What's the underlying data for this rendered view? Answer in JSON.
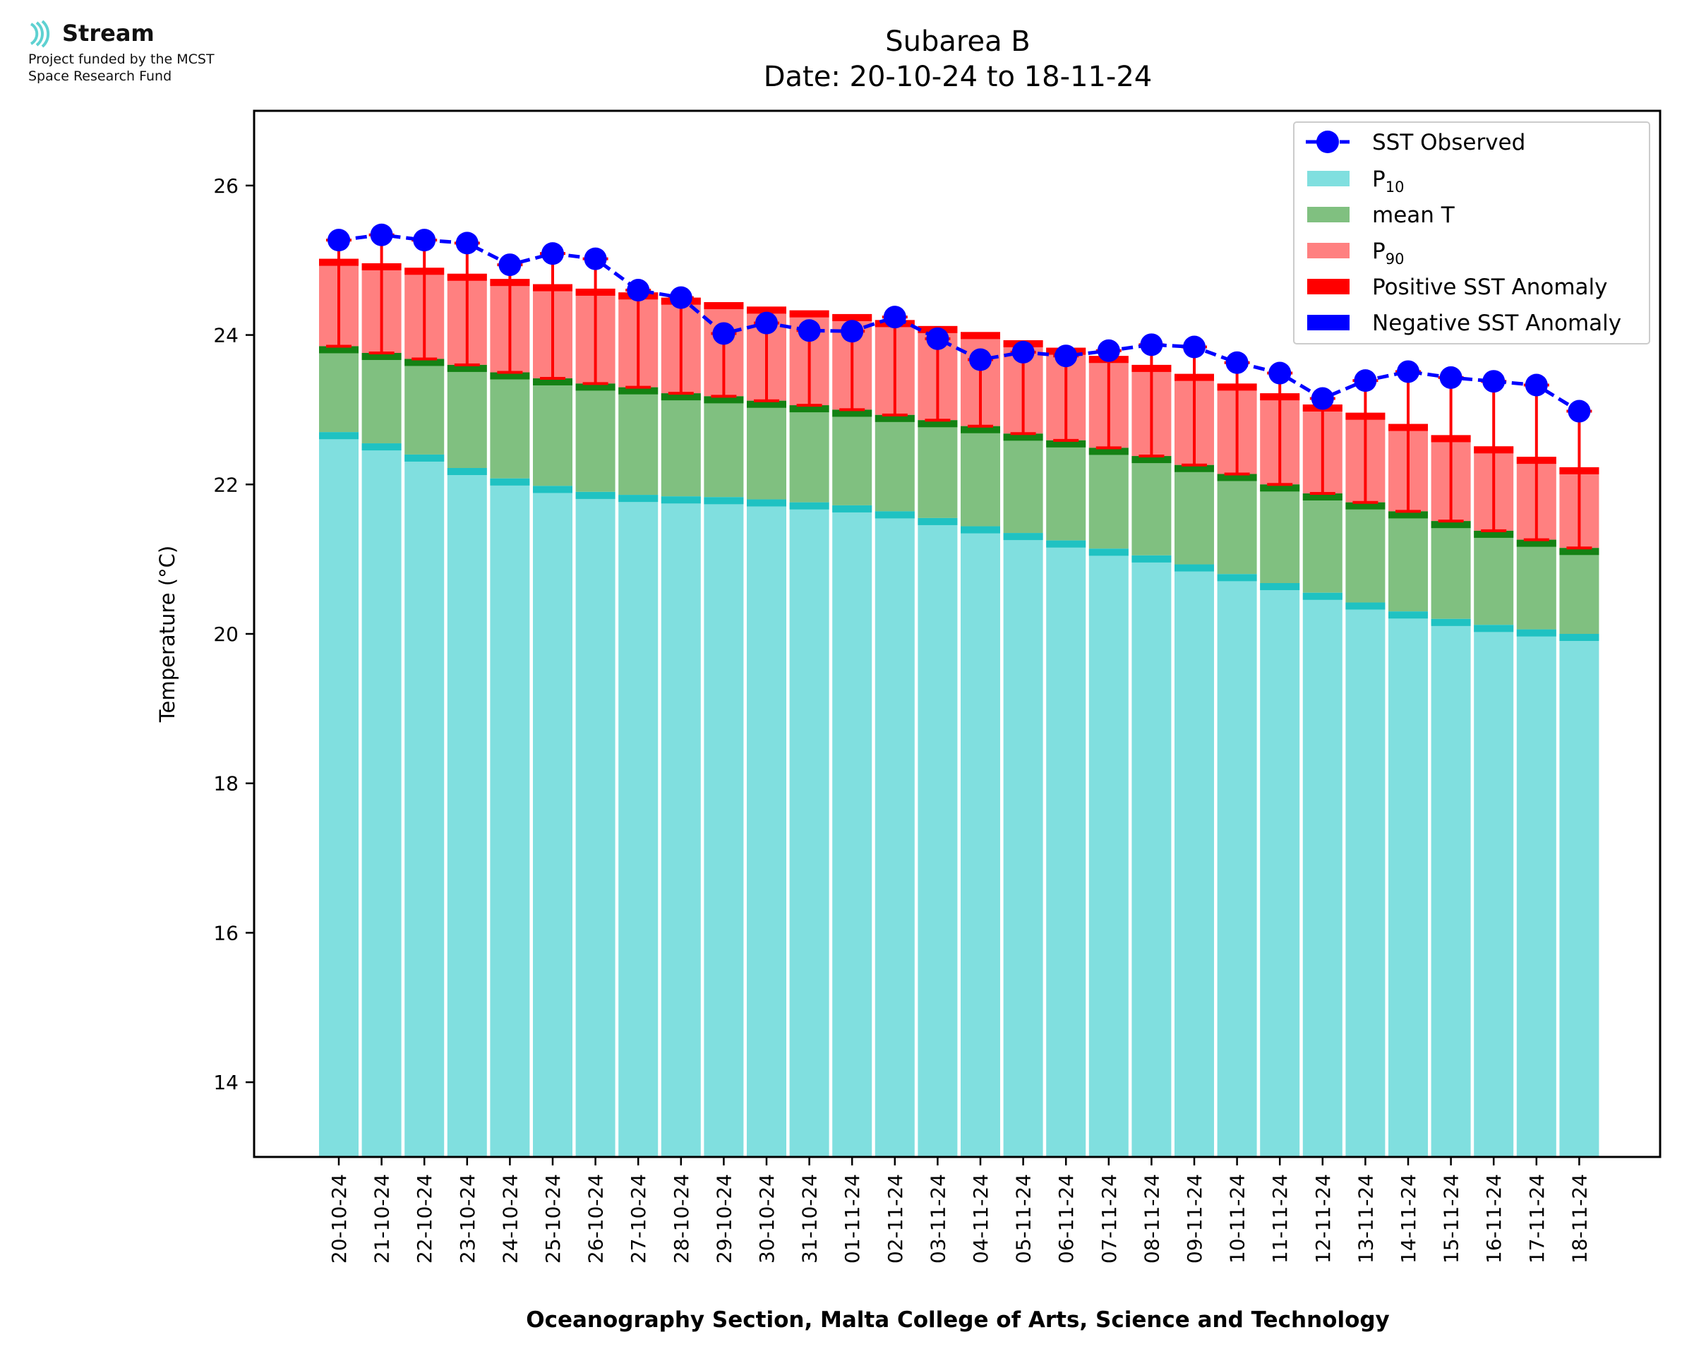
{
  "logo": {
    "brand": "Stream",
    "line1": "Project funded by the MCST",
    "line2": "Space Research Fund"
  },
  "chart_data": {
    "type": "bar",
    "title": "Subarea B",
    "subtitle": "Date: 20-10-24 to 18-11-24",
    "ylabel": "Temperature (°C)",
    "xlabel": "Oceanography Section, Malta College of Arts, Science and Technology",
    "ylim": [
      13,
      27
    ],
    "yticks": [
      14,
      16,
      18,
      20,
      22,
      24,
      26
    ],
    "grid": false,
    "legend_position": "top-right",
    "categories": [
      "20-10-24",
      "21-10-24",
      "22-10-24",
      "23-10-24",
      "24-10-24",
      "25-10-24",
      "26-10-24",
      "27-10-24",
      "28-10-24",
      "29-10-24",
      "30-10-24",
      "31-10-24",
      "01-11-24",
      "02-11-24",
      "03-11-24",
      "04-11-24",
      "05-11-24",
      "06-11-24",
      "07-11-24",
      "08-11-24",
      "09-11-24",
      "10-11-24",
      "11-11-24",
      "12-11-24",
      "13-11-24",
      "14-11-24",
      "15-11-24",
      "16-11-24",
      "17-11-24",
      "18-11-24"
    ],
    "series": [
      {
        "name": "P",
        "subscript": "10",
        "color": "#80dfdf",
        "edge_color": "#1fc2c2",
        "values": [
          22.7,
          22.55,
          22.4,
          22.22,
          22.08,
          21.98,
          21.9,
          21.86,
          21.84,
          21.83,
          21.8,
          21.76,
          21.72,
          21.64,
          21.55,
          21.44,
          21.35,
          21.25,
          21.14,
          21.05,
          20.93,
          20.8,
          20.68,
          20.55,
          20.42,
          20.3,
          20.2,
          20.12,
          20.06,
          20.0
        ]
      },
      {
        "name": "mean T",
        "color": "#80c080",
        "edge_color": "#148214",
        "values": [
          23.85,
          23.76,
          23.68,
          23.6,
          23.5,
          23.42,
          23.35,
          23.3,
          23.22,
          23.18,
          23.12,
          23.06,
          23.0,
          22.93,
          22.86,
          22.78,
          22.68,
          22.59,
          22.49,
          22.38,
          22.26,
          22.14,
          22.0,
          21.88,
          21.76,
          21.64,
          21.51,
          21.38,
          21.26,
          21.15
        ]
      },
      {
        "name": "P",
        "subscript": "90",
        "color": "#ff8080",
        "edge_color": "#ff0000",
        "values": [
          25.02,
          24.96,
          24.9,
          24.82,
          24.75,
          24.68,
          24.62,
          24.57,
          24.5,
          24.44,
          24.38,
          24.33,
          24.28,
          24.2,
          24.12,
          24.04,
          23.93,
          23.83,
          23.72,
          23.6,
          23.48,
          23.35,
          23.22,
          23.07,
          22.96,
          22.81,
          22.66,
          22.51,
          22.37,
          22.23
        ]
      },
      {
        "name": "SST Observed",
        "color": "#0000ff",
        "style": "line-marker-dashed",
        "values": [
          25.27,
          25.34,
          25.27,
          25.23,
          24.94,
          25.09,
          25.02,
          24.6,
          24.5,
          24.02,
          24.16,
          24.06,
          24.05,
          24.24,
          23.95,
          23.67,
          23.77,
          23.72,
          23.79,
          23.87,
          23.84,
          23.63,
          23.49,
          23.15,
          23.39,
          23.51,
          23.43,
          23.38,
          23.33,
          22.98
        ]
      }
    ],
    "anomaly_legend": [
      {
        "name": "Positive SST Anomaly",
        "color": "#ff0000"
      },
      {
        "name": "Negative SST Anomaly",
        "color": "#0000ff"
      }
    ]
  }
}
